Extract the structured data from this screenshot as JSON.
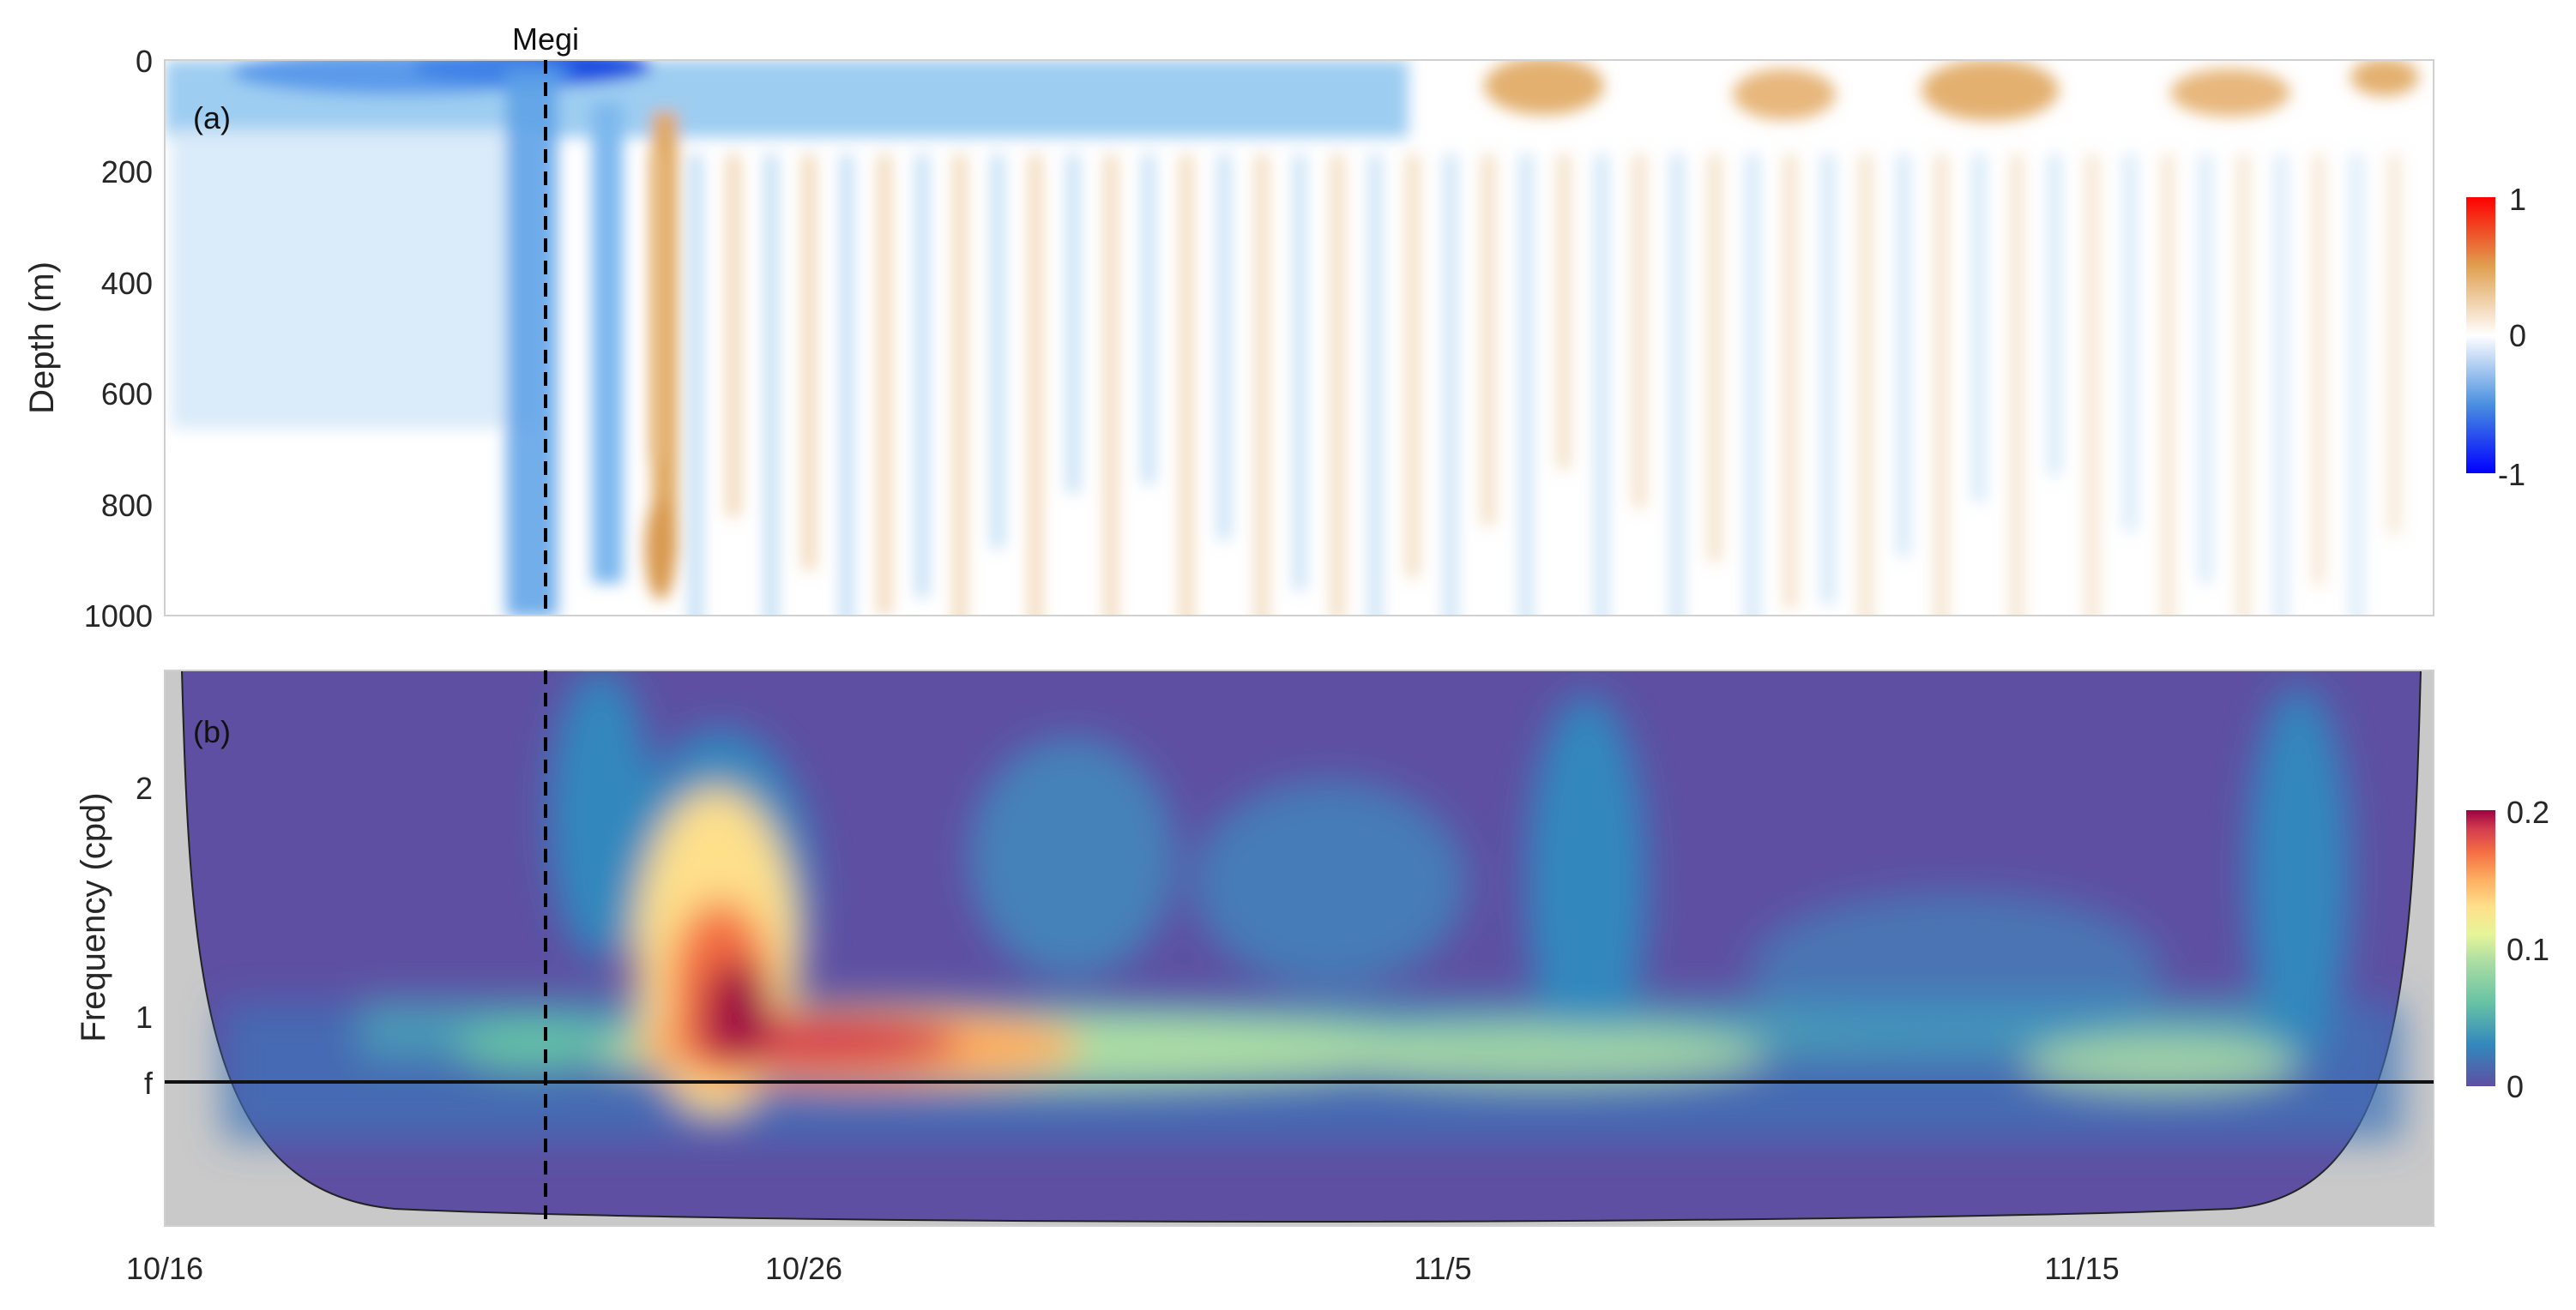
{
  "chart_data": [
    {
      "type": "heatmap",
      "panel_label": "(a)",
      "ylabel": "Depth (m)",
      "y_ticks": [
        "0",
        "200",
        "400",
        "600",
        "800",
        "1000"
      ],
      "ylim": [
        0,
        1000
      ],
      "y_reversed": true,
      "x_ticks": [
        "10/16",
        "10/26",
        "11/5",
        "11/15"
      ],
      "x_range_days": [
        0,
        35.5
      ],
      "colorbar": {
        "ticks": [
          "1",
          "0",
          "-1"
        ],
        "range": [
          -1,
          1
        ],
        "colors": [
          "#0000ff",
          "#ffffff",
          "#ff0000"
        ]
      },
      "event_marker": {
        "label": "Megi",
        "day": 6,
        "style": "dashed"
      }
    },
    {
      "type": "heatmap",
      "panel_label": "(b)",
      "ylabel": "Frequency (cpd)",
      "y_ticks": [
        "2",
        "1",
        "f"
      ],
      "x_ticks": [
        "10/16",
        "10/26",
        "11/5",
        "11/15"
      ],
      "x_range_days": [
        0,
        35.5
      ],
      "colorbar": {
        "ticks": [
          "0.2",
          "0.1",
          "0"
        ],
        "range": [
          0,
          0.2
        ],
        "colormap": "spectral"
      },
      "inertial_line_label": "f",
      "event_marker": {
        "label": "Megi",
        "day": 6,
        "style": "dashed"
      }
    }
  ]
}
